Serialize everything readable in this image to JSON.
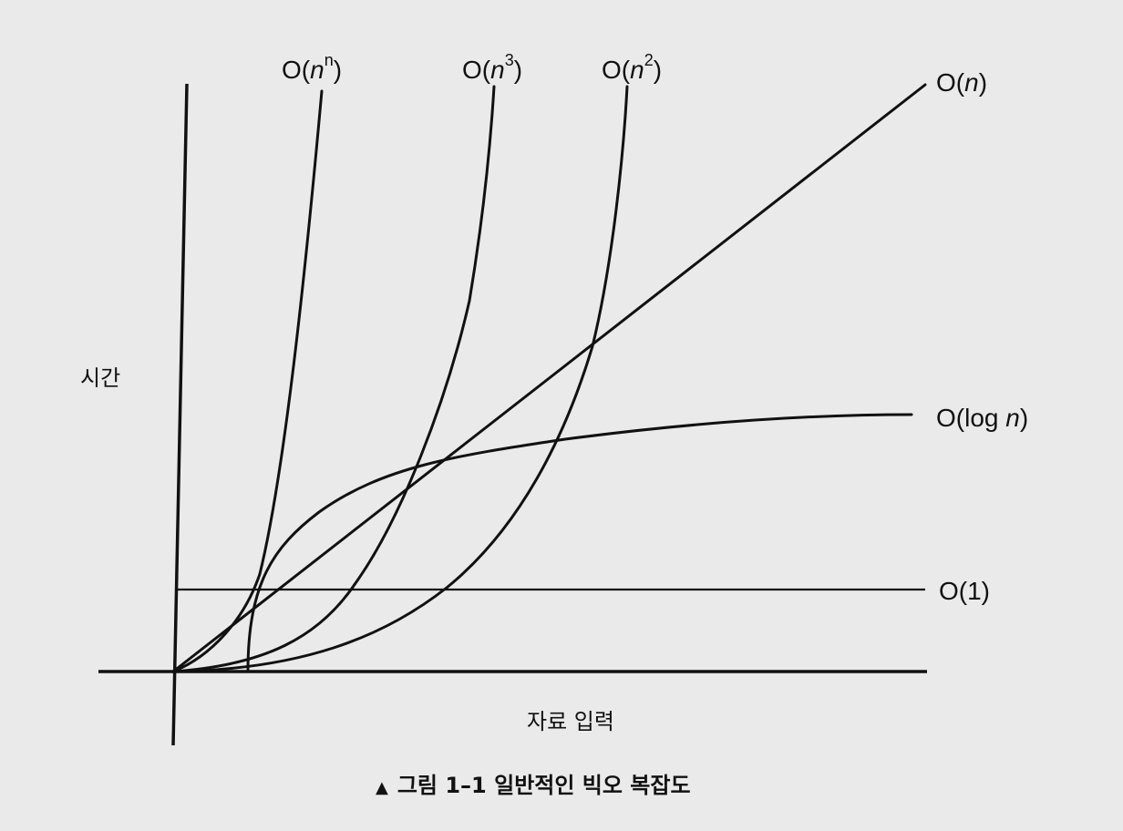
{
  "chart_data": {
    "type": "line",
    "title": "",
    "xlabel": "자료 입력",
    "ylabel": "시간",
    "grid": false,
    "series": [
      {
        "name": "O(nⁿ)",
        "label": {
          "base": "O(",
          "var": "n",
          "sup": "n",
          "close": ")"
        }
      },
      {
        "name": "O(n³)",
        "label": {
          "base": "O(",
          "var": "n",
          "sup": "3",
          "close": ")"
        }
      },
      {
        "name": "O(n²)",
        "label": {
          "base": "O(",
          "var": "n",
          "sup": "2",
          "close": ")"
        }
      },
      {
        "name": "O(n)",
        "label": {
          "base": "O(",
          "var": "n",
          "sup": "",
          "close": ")"
        }
      },
      {
        "name": "O(log n)",
        "label": {
          "base": "O(log ",
          "var": "n",
          "sup": "",
          "close": ")"
        }
      },
      {
        "name": "O(1)",
        "label": {
          "base": "O(1)",
          "var": "",
          "sup": "",
          "close": ""
        }
      }
    ]
  },
  "caption": {
    "marker": "▲",
    "text": "그림 1–1 일반적인 빅오 복잡도"
  }
}
